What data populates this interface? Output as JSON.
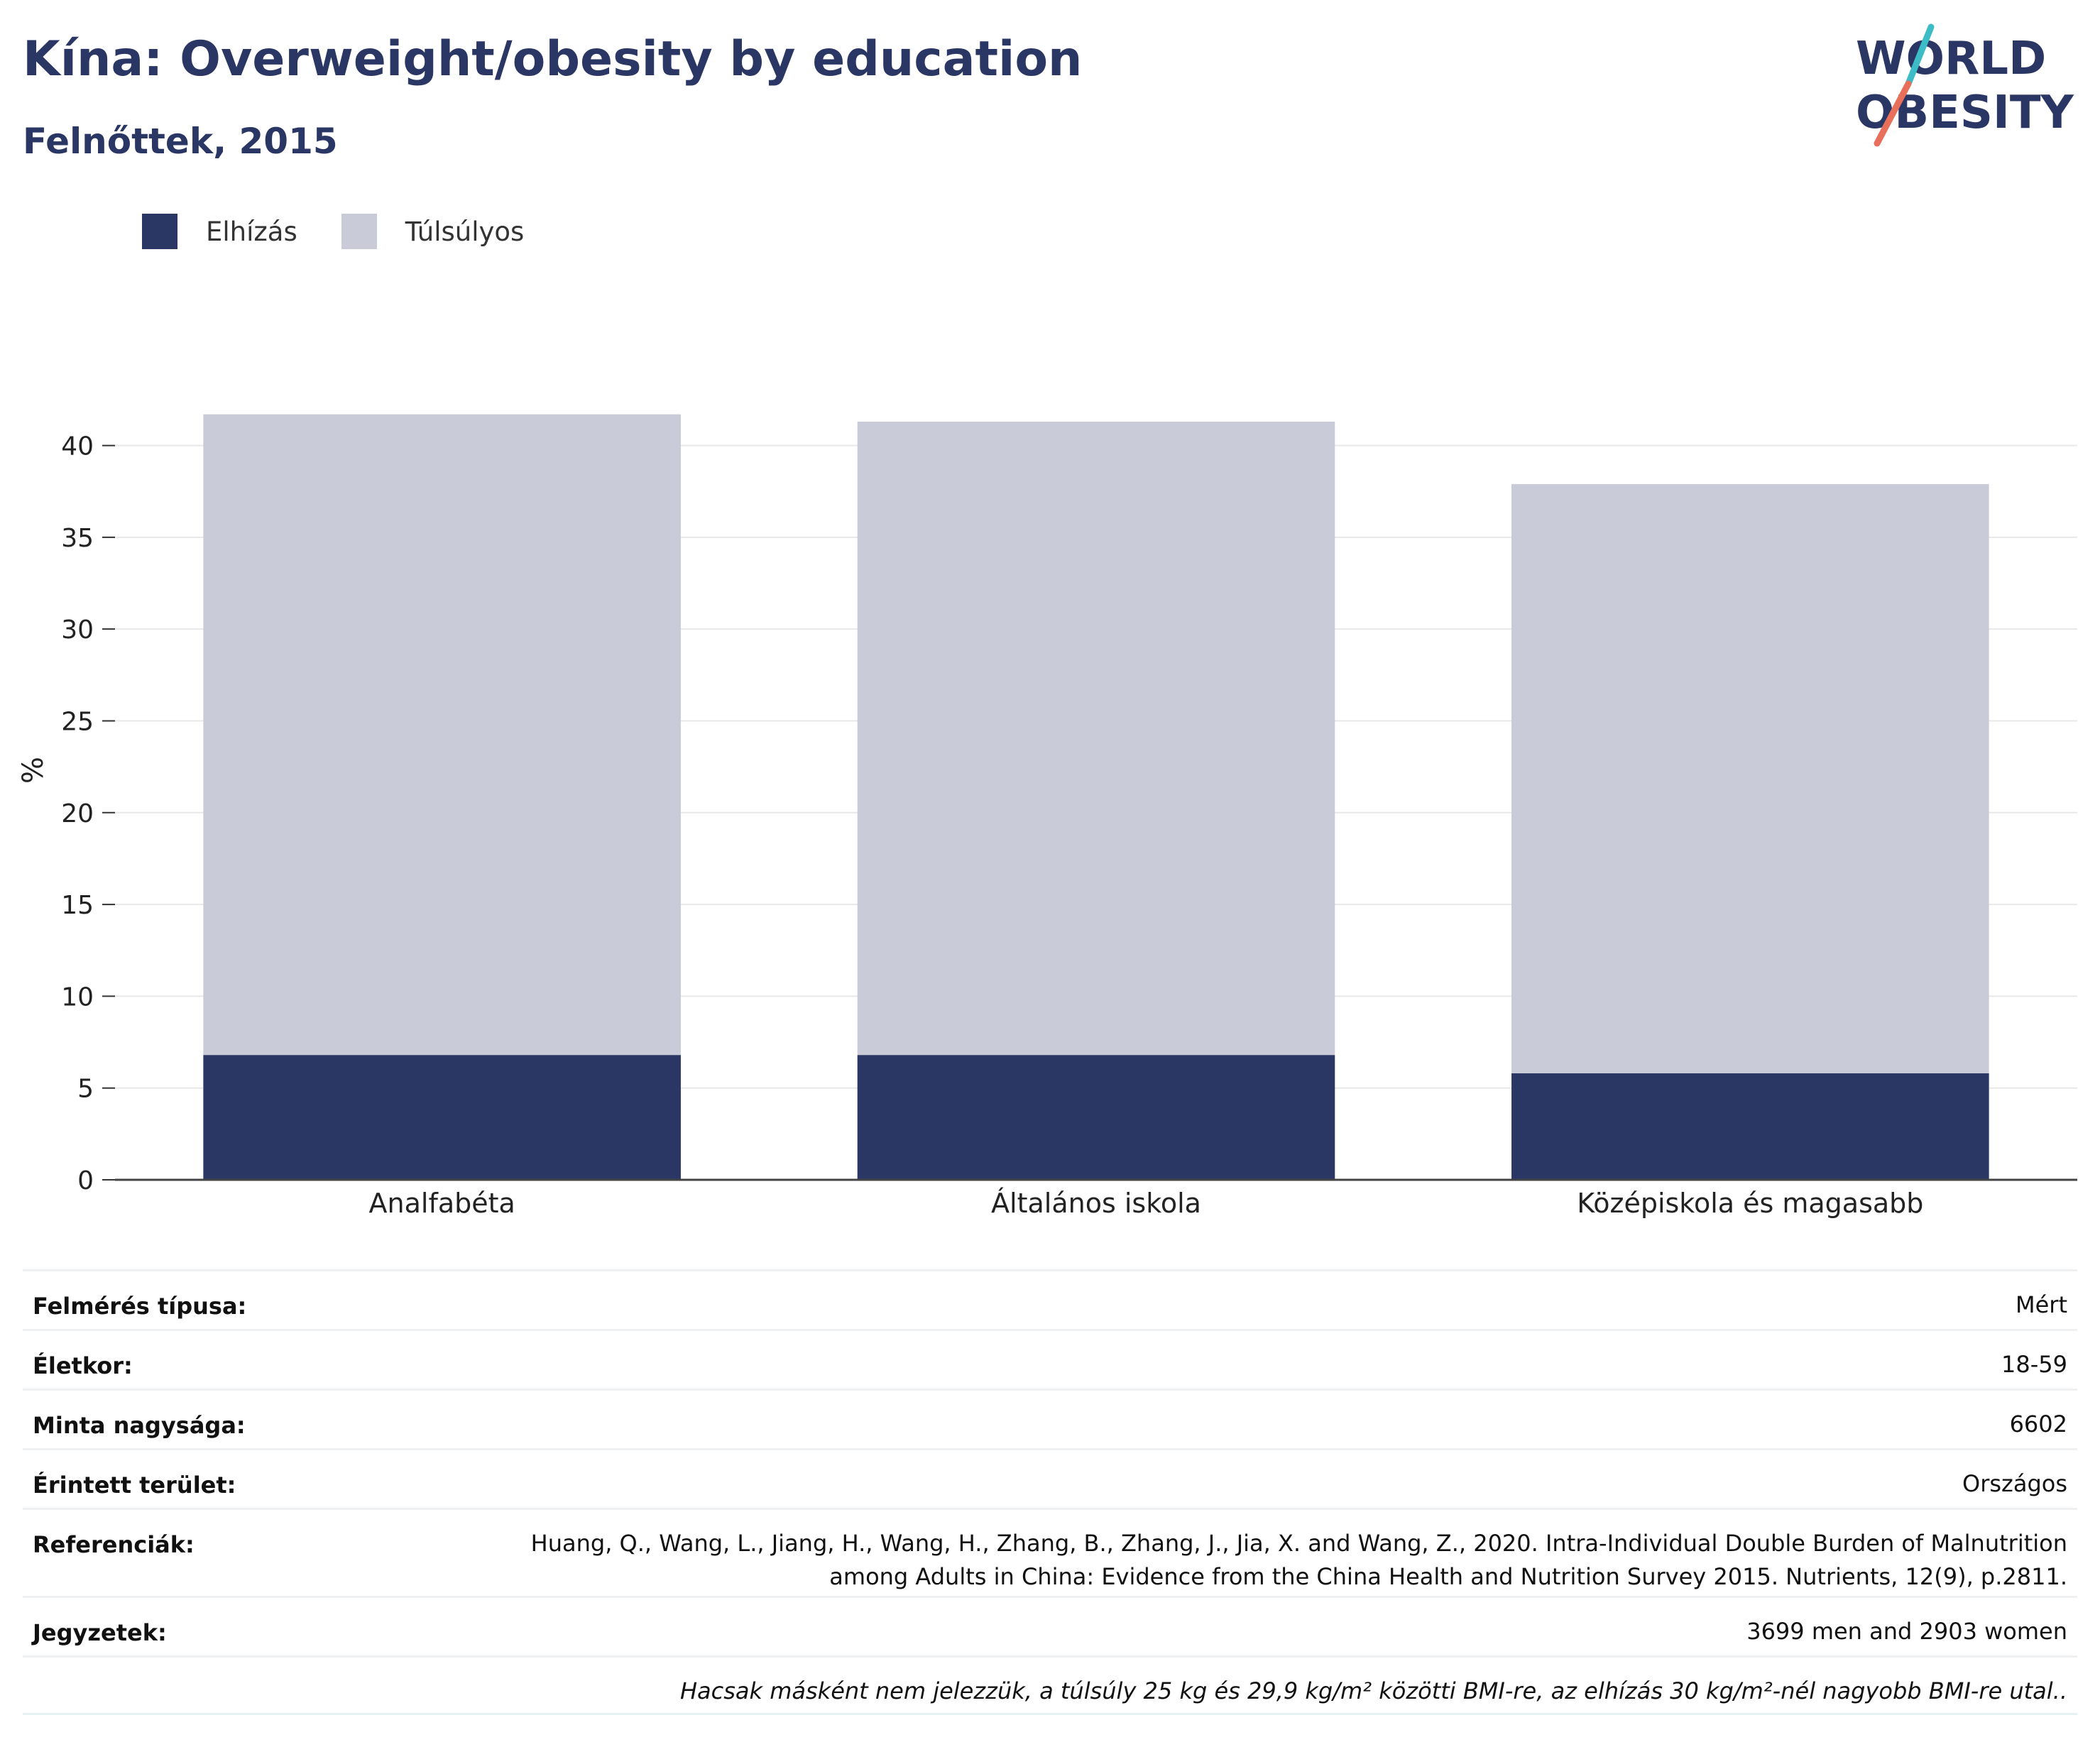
{
  "title": "Kína: Overweight/obesity by education",
  "subtitle": "Felnőttek, 2015",
  "logo": {
    "line1": "WORLD",
    "line2": "OBESITY"
  },
  "colors": {
    "obesity": "#2a3663",
    "overweight": "#c9ccd8",
    "text": "#2a3663",
    "grid": "#e6e6e6",
    "logo_teal": "#3bbcc6",
    "logo_coral": "#e8705a"
  },
  "legend": [
    {
      "label": "Elhízás",
      "color": "#2a3663"
    },
    {
      "label": "Túlsúlyos",
      "color": "#c9ccd8"
    }
  ],
  "chart_data": {
    "type": "bar",
    "stacked": true,
    "categories": [
      "Analfabéta",
      "Általános iskola",
      "Középiskola és magasabb"
    ],
    "series": [
      {
        "name": "Elhízás",
        "values": [
          6.8,
          6.8,
          5.8
        ]
      },
      {
        "name": "Túlsúlyos",
        "values": [
          34.9,
          34.5,
          32.1
        ]
      }
    ],
    "ylabel": "%",
    "xlabel": "",
    "ylim": [
      0,
      43
    ],
    "yticks": [
      0,
      5,
      10,
      15,
      20,
      25,
      30,
      35,
      40
    ],
    "grid": true,
    "legend_position": "top-left"
  },
  "meta": {
    "survey_type": {
      "label": "Felmérés típusa:",
      "value": "Mért"
    },
    "age": {
      "label": "Életkor:",
      "value": "18-59"
    },
    "sample_size": {
      "label": "Minta nagysága:",
      "value": "6602"
    },
    "area": {
      "label": "Érintett terület:",
      "value": "Országos"
    },
    "references": {
      "label": "Referenciák:",
      "value": "Huang, Q., Wang, L., Jiang, H., Wang, H., Zhang, B., Zhang, J., Jia, X. and Wang, Z., 2020. Intra-Individual Double Burden of Malnutrition among Adults in China: Evidence from the China Health and Nutrition Survey 2015. Nutrients, 12(9), p.2811."
    },
    "notes": {
      "label": "Jegyzetek:",
      "value": "3699 men and 2903 women"
    },
    "footnote": "Hacsak másként nem jelezzük, a túlsúly 25 kg és 29,9 kg/m² közötti BMI-re, az elhízás 30 kg/m²-nél nagyobb BMI-re utal.."
  }
}
